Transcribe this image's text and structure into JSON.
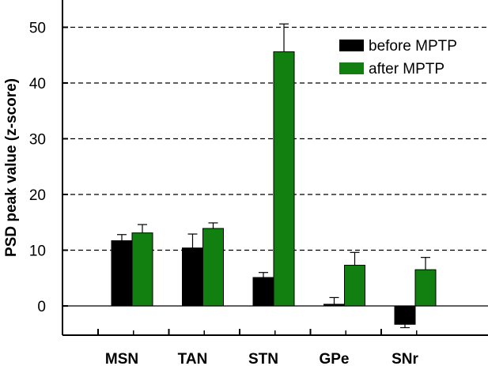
{
  "chart_data": {
    "type": "bar",
    "title": "",
    "xlabel": "",
    "ylabel": "PSD peak value (z-score)",
    "ylim": [
      -5,
      55
    ],
    "yticks": [
      0,
      10,
      20,
      30,
      40,
      50
    ],
    "grid": "dashed horizontal lines at 10, 20, 30, 40, 50",
    "legend_position": "top-right",
    "categories": [
      "MSN",
      "TAN",
      "STN",
      "GPe",
      "SNr"
    ],
    "series": [
      {
        "name": "before MPTP",
        "color": "#000000",
        "values": [
          11.7,
          10.4,
          5.1,
          0.3,
          -3.3
        ],
        "errors": [
          1.1,
          2.5,
          0.9,
          1.2,
          0.6
        ]
      },
      {
        "name": "after MPTP",
        "color": "#118011",
        "values": [
          13.1,
          13.9,
          45.6,
          7.3,
          6.5
        ],
        "errors": [
          1.5,
          1.0,
          5.0,
          2.3,
          2.2
        ]
      }
    ]
  }
}
